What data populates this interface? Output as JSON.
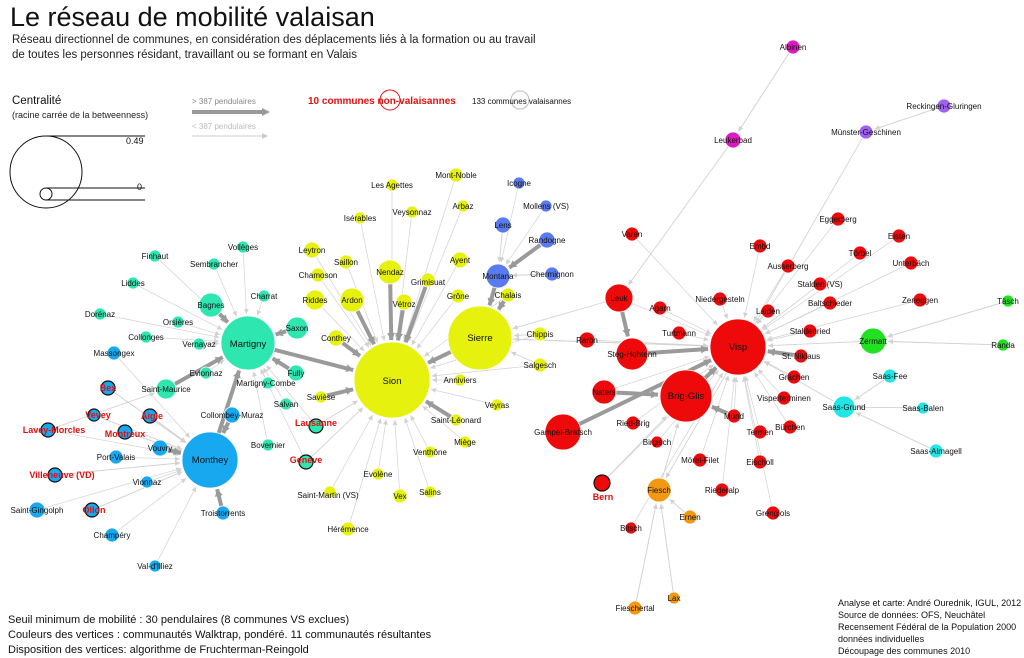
{
  "title": "Le réseau de mobilité valaisan",
  "subtitle_lines": [
    "Réseau directionnel de communes, en considération des déplacements liés à la formation ou au travail",
    "de toutes les personnes résidant, travaillant ou se formant en Valais"
  ],
  "legend": {
    "centrality_label": "Centralité",
    "centrality_sublabel": "(racine carrée de la betweenness)",
    "max_value": "0.49",
    "min_value": "0",
    "strong_edge_label": "> 387 pendulaires",
    "weak_edge_label": "< 387 pendulaires",
    "non_valais_label": "10 communes non-valaisannes",
    "valais_label": "133 communes valaisannes"
  },
  "colors": {
    "yellow": "#e6f20e",
    "cyan_green": "#2ee6b0",
    "blue": "#18a8f0",
    "indigo": "#5a7aef",
    "red": "#ee0a0a",
    "orange": "#f39812",
    "magenta": "#e018c0",
    "purple": "#a060f0",
    "green": "#22e022",
    "cyan": "#22e6e6",
    "edge": "#9a9a9a",
    "non_valais_text": "#e01010"
  },
  "nodes": [
    {
      "id": "Sion",
      "c": "yellow"
    },
    {
      "id": "Sierre",
      "c": "yellow"
    },
    {
      "id": "Nendaz",
      "c": "yellow"
    },
    {
      "id": "Ardon",
      "c": "yellow"
    },
    {
      "id": "Riddes",
      "c": "yellow"
    },
    {
      "id": "Conthey",
      "c": "yellow"
    },
    {
      "id": "Leytron",
      "c": "yellow"
    },
    {
      "id": "Chamoson",
      "c": "yellow"
    },
    {
      "id": "Saillon",
      "c": "yellow"
    },
    {
      "id": "Vétroz",
      "c": "yellow"
    },
    {
      "id": "Grimisuat",
      "c": "yellow"
    },
    {
      "id": "Ayent",
      "c": "yellow"
    },
    {
      "id": "Grône",
      "c": "yellow"
    },
    {
      "id": "Chalais",
      "c": "yellow"
    },
    {
      "id": "Chippis",
      "c": "yellow"
    },
    {
      "id": "Salgesch",
      "c": "yellow"
    },
    {
      "id": "Anniviers",
      "c": "yellow"
    },
    {
      "id": "Veyras",
      "c": "yellow"
    },
    {
      "id": "Saint-Léonard",
      "c": "yellow"
    },
    {
      "id": "Miège",
      "c": "yellow"
    },
    {
      "id": "Venthône",
      "c": "yellow"
    },
    {
      "id": "Evolène",
      "c": "yellow"
    },
    {
      "id": "Vex",
      "c": "yellow"
    },
    {
      "id": "Salins",
      "c": "yellow"
    },
    {
      "id": "Saint-Martin (VS)",
      "c": "yellow"
    },
    {
      "id": "Hérémence",
      "c": "yellow"
    },
    {
      "id": "Savièse",
      "c": "yellow"
    },
    {
      "id": "Les Agettes",
      "c": "yellow"
    },
    {
      "id": "Mont-Noble",
      "c": "yellow"
    },
    {
      "id": "Isérables",
      "c": "yellow"
    },
    {
      "id": "Veysonnaz",
      "c": "yellow"
    },
    {
      "id": "Arbaz",
      "c": "yellow"
    },
    {
      "id": "Martigny",
      "c": "cyan_green"
    },
    {
      "id": "Saxon",
      "c": "cyan_green"
    },
    {
      "id": "Bagnes",
      "c": "cyan_green"
    },
    {
      "id": "Fully",
      "c": "cyan_green"
    },
    {
      "id": "Charrat",
      "c": "cyan_green"
    },
    {
      "id": "Vollèges",
      "c": "cyan_green"
    },
    {
      "id": "Sembrancher",
      "c": "cyan_green"
    },
    {
      "id": "Finhaut",
      "c": "cyan_green"
    },
    {
      "id": "Liddes",
      "c": "cyan_green"
    },
    {
      "id": "Orsières",
      "c": "cyan_green"
    },
    {
      "id": "Dorénaz",
      "c": "cyan_green"
    },
    {
      "id": "Collonges",
      "c": "cyan_green"
    },
    {
      "id": "Vernayaz",
      "c": "cyan_green"
    },
    {
      "id": "Evionnaz",
      "c": "cyan_green"
    },
    {
      "id": "Saint-Maurice",
      "c": "cyan_green"
    },
    {
      "id": "Martigny-Combe",
      "c": "cyan_green"
    },
    {
      "id": "Salvan",
      "c": "cyan_green"
    },
    {
      "id": "Bovernier",
      "c": "cyan_green"
    },
    {
      "id": "Monthey",
      "c": "blue"
    },
    {
      "id": "Massongex",
      "c": "blue"
    },
    {
      "id": "Collombey-Muraz",
      "c": "blue"
    },
    {
      "id": "Vouvry",
      "c": "blue"
    },
    {
      "id": "Port-Valais",
      "c": "blue"
    },
    {
      "id": "Vionnaz",
      "c": "blue"
    },
    {
      "id": "Troistorrents",
      "c": "blue"
    },
    {
      "id": "Saint-Gingolph",
      "c": "blue"
    },
    {
      "id": "Champéry",
      "c": "blue"
    },
    {
      "id": "Val-d'Illiez",
      "c": "blue"
    },
    {
      "id": "Lens",
      "c": "indigo"
    },
    {
      "id": "Icogne",
      "c": "indigo"
    },
    {
      "id": "Mollens (VS)",
      "c": "indigo"
    },
    {
      "id": "Randogne",
      "c": "indigo"
    },
    {
      "id": "Montana",
      "c": "indigo"
    },
    {
      "id": "Chermignon",
      "c": "indigo"
    },
    {
      "id": "Visp",
      "c": "red"
    },
    {
      "id": "Brig-Glis",
      "c": "red"
    },
    {
      "id": "Naters",
      "c": "red"
    },
    {
      "id": "Steg-Hohtenn",
      "c": "red"
    },
    {
      "id": "Leuk",
      "c": "red"
    },
    {
      "id": "Gampel-Bratsch",
      "c": "red"
    },
    {
      "id": "Varen",
      "c": "red"
    },
    {
      "id": "Agarn",
      "c": "red"
    },
    {
      "id": "Turtmann",
      "c": "red"
    },
    {
      "id": "Niedergesteln",
      "c": "red"
    },
    {
      "id": "Raron",
      "c": "red"
    },
    {
      "id": "Ried-Brig",
      "c": "red"
    },
    {
      "id": "Termen",
      "c": "red"
    },
    {
      "id": "Mund",
      "c": "red"
    },
    {
      "id": "Birgisch",
      "c": "red"
    },
    {
      "id": "Mörel-Filet",
      "c": "red"
    },
    {
      "id": "Riederalp",
      "c": "red"
    },
    {
      "id": "Eischoll",
      "c": "red"
    },
    {
      "id": "Grengiols",
      "c": "red"
    },
    {
      "id": "Bitsch",
      "c": "red"
    },
    {
      "id": "Visperterminen",
      "c": "red"
    },
    {
      "id": "Bürchen",
      "c": "red"
    },
    {
      "id": "Grächen",
      "c": "red"
    },
    {
      "id": "St. Niklaus",
      "c": "red"
    },
    {
      "id": "Stalden (VS)",
      "c": "red"
    },
    {
      "id": "Staldenried",
      "c": "red"
    },
    {
      "id": "Lalden",
      "c": "red"
    },
    {
      "id": "Baltschieder",
      "c": "red"
    },
    {
      "id": "Ausserberg",
      "c": "red"
    },
    {
      "id": "Embd",
      "c": "red"
    },
    {
      "id": "Eggerberg",
      "c": "red"
    },
    {
      "id": "Eisten",
      "c": "red"
    },
    {
      "id": "Törbel",
      "c": "red"
    },
    {
      "id": "Unterbäch",
      "c": "red"
    },
    {
      "id": "Zeneggen",
      "c": "red"
    },
    {
      "id": "Fiesch",
      "c": "orange"
    },
    {
      "id": "Ernen",
      "c": "orange"
    },
    {
      "id": "Lax",
      "c": "orange"
    },
    {
      "id": "Fieschertal",
      "c": "orange"
    },
    {
      "id": "Leukerbad",
      "c": "magenta"
    },
    {
      "id": "Albinen",
      "c": "magenta"
    },
    {
      "id": "Reckingen-Gluringen",
      "c": "purple"
    },
    {
      "id": "Münster-Geschinen",
      "c": "purple"
    },
    {
      "id": "Zermatt",
      "c": "green"
    },
    {
      "id": "Täsch",
      "c": "green"
    },
    {
      "id": "Randa",
      "c": "green"
    },
    {
      "id": "Saas-Fee",
      "c": "cyan"
    },
    {
      "id": "Saas-Grund",
      "c": "cyan"
    },
    {
      "id": "Saas-Balen",
      "c": "cyan"
    },
    {
      "id": "Saas-Almagell",
      "c": "cyan"
    },
    {
      "id": "Bex",
      "c": "blue",
      "nv": true
    },
    {
      "id": "Vevey",
      "c": "blue",
      "nv": true
    },
    {
      "id": "Aigle",
      "c": "blue",
      "nv": true
    },
    {
      "id": "Montreux",
      "c": "blue",
      "nv": true
    },
    {
      "id": "Lavey-Morcles",
      "c": "blue",
      "nv": true
    },
    {
      "id": "Villeneuve (VD)",
      "c": "blue",
      "nv": true
    },
    {
      "id": "Ollon",
      "c": "blue",
      "nv": true
    },
    {
      "id": "Lausanne",
      "c": "cyan_green",
      "nv": true
    },
    {
      "id": "Genève",
      "c": "cyan_green",
      "nv": true
    },
    {
      "id": "Bern",
      "c": "red",
      "nv": true
    }
  ],
  "footer_lines": [
    "Seuil minimum de mobilité : 30 pendulaires (8 communes VS exclues)",
    "Couleurs des vertices : communautés Walktrap, pondéré. 11 communautés résultantes",
    "Disposition des vertices: algorithme de Fruchterman-Reingold"
  ],
  "credits": [
    "Analyse et carte: André Ourednik, IGUL, 2012",
    "Source de données: OFS, Neuchâtel",
    "Recensement Fédéral de la Population 2000",
    "données individuelles",
    "Découpage des communes 2010"
  ]
}
